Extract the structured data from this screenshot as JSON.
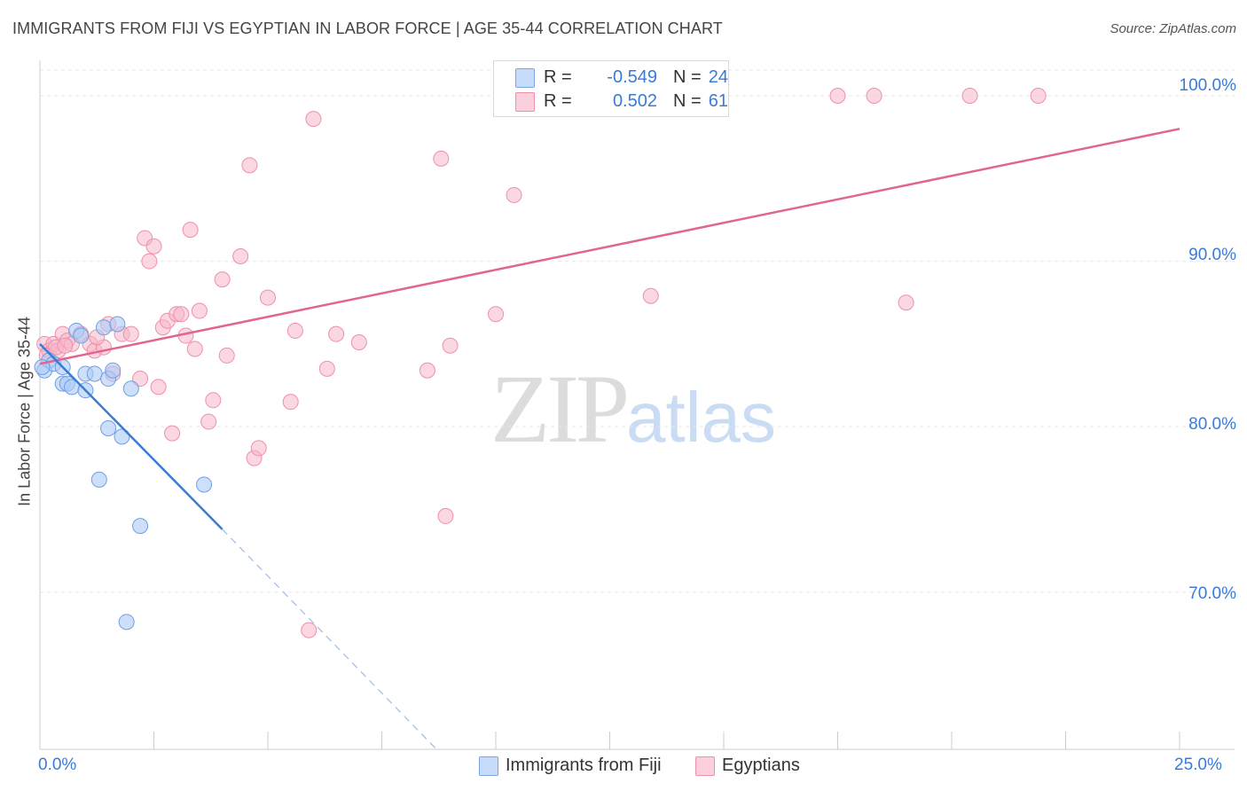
{
  "header": {
    "title": "IMMIGRANTS FROM FIJI VS EGYPTIAN IN LABOR FORCE | AGE 35-44 CORRELATION CHART",
    "source": "Source: ZipAtlas.com"
  },
  "watermark": {
    "zip": "ZIP",
    "atlas": "atlas"
  },
  "legend": {
    "rows": [
      {
        "r_label": "R =",
        "r_value": "-0.549",
        "n_label": "N =",
        "n_value": "24",
        "color": "#aecbf5"
      },
      {
        "r_label": "R =",
        "r_value": "0.502",
        "n_label": "N =",
        "n_value": "61",
        "color": "#f7b6c8"
      }
    ]
  },
  "bottom_legend": [
    {
      "label": "Immigrants from Fiji",
      "color": "#aecbf5"
    },
    {
      "label": "Egyptians",
      "color": "#f7b6c8"
    }
  ],
  "chart_data": {
    "type": "scatter",
    "title": "IMMIGRANTS FROM FIJI VS EGYPTIAN IN LABOR FORCE | AGE 35-44 CORRELATION CHART",
    "xlabel": "",
    "ylabel": "In Labor Force | Age 35-44",
    "xlim": [
      0,
      25
    ],
    "ylim": [
      60.5,
      101.5
    ],
    "x_tick_labels": [
      "0.0%",
      "25.0%"
    ],
    "y_ticks": [
      70,
      80,
      90,
      100
    ],
    "y_tick_labels": [
      "70.0%",
      "80.0%",
      "90.0%",
      "100.0%"
    ],
    "grid": true,
    "series": [
      {
        "name": "Immigrants from Fiji",
        "color": "#3a7bd5",
        "fill": "#aecbf5",
        "points": [
          [
            0.1,
            83.4
          ],
          [
            0.2,
            84.0
          ],
          [
            0.3,
            83.8
          ],
          [
            0.5,
            83.6
          ],
          [
            0.5,
            82.6
          ],
          [
            0.6,
            82.6
          ],
          [
            0.7,
            82.4
          ],
          [
            0.8,
            85.8
          ],
          [
            0.9,
            85.5
          ],
          [
            1.0,
            82.2
          ],
          [
            1.0,
            83.2
          ],
          [
            1.2,
            83.2
          ],
          [
            1.3,
            76.8
          ],
          [
            1.4,
            86.0
          ],
          [
            1.5,
            82.9
          ],
          [
            1.5,
            79.9
          ],
          [
            1.6,
            83.4
          ],
          [
            1.7,
            86.2
          ],
          [
            1.8,
            79.4
          ],
          [
            1.9,
            68.2
          ],
          [
            2.0,
            82.3
          ],
          [
            2.2,
            74.0
          ],
          [
            3.6,
            76.5
          ],
          [
            0.05,
            83.6
          ]
        ],
        "trend": {
          "x0": 0.0,
          "y0": 85.0,
          "x1": 4.0,
          "y1": 73.8,
          "dash_to_x": 8.7,
          "dash_to_y": 60.5
        }
      },
      {
        "name": "Egyptians",
        "color": "#e06690",
        "fill": "#f7b6c8",
        "points": [
          [
            0.1,
            85.0
          ],
          [
            0.2,
            84.6
          ],
          [
            0.3,
            85.0
          ],
          [
            0.4,
            84.6
          ],
          [
            0.5,
            85.6
          ],
          [
            0.6,
            85.2
          ],
          [
            0.7,
            85.0
          ],
          [
            0.9,
            85.6
          ],
          [
            1.1,
            85.0
          ],
          [
            1.2,
            84.6
          ],
          [
            1.4,
            84.8
          ],
          [
            1.5,
            86.2
          ],
          [
            1.6,
            83.2
          ],
          [
            1.8,
            85.6
          ],
          [
            2.0,
            85.6
          ],
          [
            2.2,
            82.9
          ],
          [
            2.3,
            91.4
          ],
          [
            2.4,
            90.0
          ],
          [
            2.5,
            90.9
          ],
          [
            2.6,
            82.4
          ],
          [
            2.7,
            86.0
          ],
          [
            2.8,
            86.4
          ],
          [
            2.9,
            79.6
          ],
          [
            3.0,
            86.8
          ],
          [
            3.1,
            86.8
          ],
          [
            3.2,
            85.5
          ],
          [
            3.3,
            91.9
          ],
          [
            3.4,
            84.7
          ],
          [
            3.5,
            87.0
          ],
          [
            3.7,
            80.3
          ],
          [
            3.8,
            81.6
          ],
          [
            4.0,
            88.9
          ],
          [
            4.1,
            84.3
          ],
          [
            4.4,
            90.3
          ],
          [
            4.6,
            95.8
          ],
          [
            4.7,
            78.1
          ],
          [
            4.8,
            78.7
          ],
          [
            5.0,
            87.8
          ],
          [
            5.5,
            81.5
          ],
          [
            5.6,
            85.8
          ],
          [
            5.9,
            67.7
          ],
          [
            6.0,
            98.6
          ],
          [
            6.3,
            83.5
          ],
          [
            6.5,
            85.6
          ],
          [
            7.0,
            85.1
          ],
          [
            8.5,
            83.4
          ],
          [
            8.8,
            96.2
          ],
          [
            8.9,
            74.6
          ],
          [
            9.0,
            84.9
          ],
          [
            10.0,
            86.8
          ],
          [
            10.4,
            94.0
          ],
          [
            13.4,
            87.9
          ],
          [
            17.5,
            100.0
          ],
          [
            18.3,
            100.0
          ],
          [
            19.0,
            87.5
          ],
          [
            20.4,
            100.0
          ],
          [
            21.9,
            100.0
          ],
          [
            0.15,
            84.3
          ],
          [
            0.35,
            84.8
          ],
          [
            1.25,
            85.4
          ],
          [
            0.55,
            84.9
          ]
        ],
        "trend": {
          "x0": 0.0,
          "y0": 83.8,
          "x1": 25.0,
          "y1": 98.0
        }
      }
    ]
  }
}
